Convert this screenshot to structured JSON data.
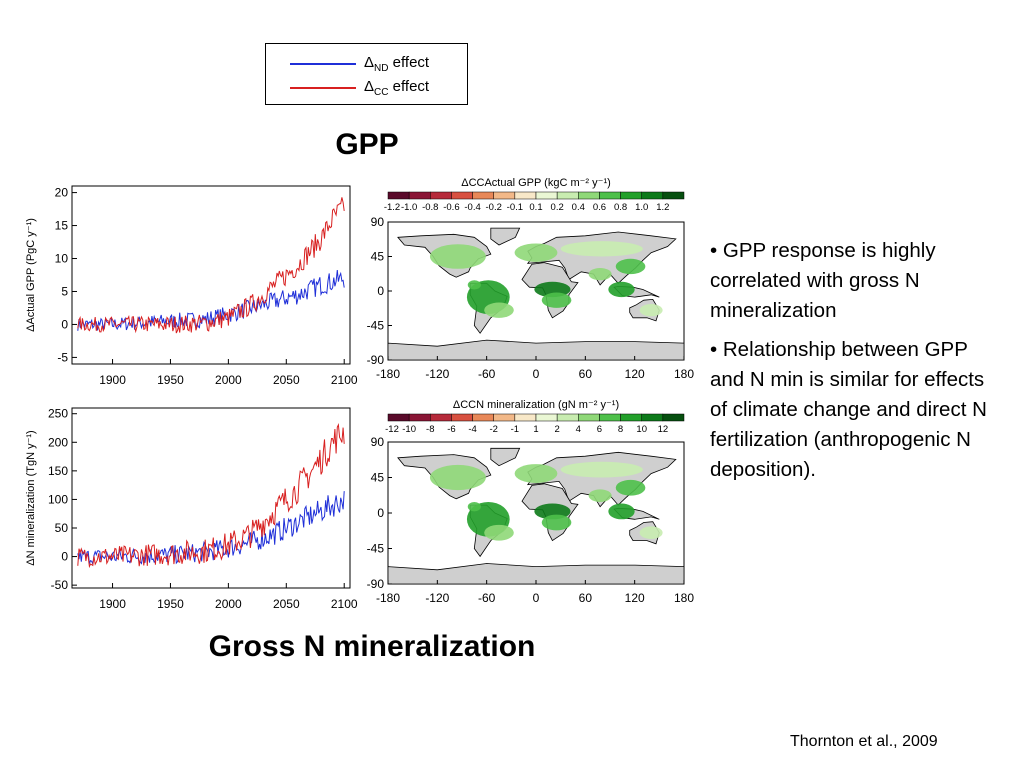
{
  "slide": {
    "title": "GPP",
    "subtitle": "Gross N mineralization",
    "bullets": [
      "• GPP response is highly correlated with gross N mineralization",
      "• Relationship between GPP and N min is similar for effects of climate change and direct N fertilization (anthropogenic N deposition)."
    ],
    "citation": "Thornton et al., 2009"
  },
  "legend": {
    "items": [
      {
        "symbol": "Δ",
        "sub": "ND",
        "label": "effect",
        "color": "#1f2fd8"
      },
      {
        "symbol": "Δ",
        "sub": "CC",
        "label": "effect",
        "color": "#d82020"
      }
    ]
  },
  "chart_data": [
    {
      "type": "line",
      "ylabel": "ΔActual GPP (PgC y⁻¹)",
      "xlim": [
        1865,
        2105
      ],
      "ylim": [
        -6,
        21
      ],
      "xticks": [
        1900,
        1950,
        2000,
        2050,
        2100
      ],
      "yticks": [
        -5,
        0,
        5,
        10,
        15,
        20
      ],
      "series": [
        {
          "name": "ΔND effect",
          "color": "#1f2fd8",
          "x": [
            1870,
            1900,
            1950,
            1980,
            2000,
            2020,
            2040,
            2060,
            2080,
            2090,
            2100
          ],
          "y": [
            0,
            0,
            0.5,
            0.8,
            1.5,
            2.5,
            3.5,
            4.5,
            6,
            6.5,
            7
          ]
        },
        {
          "name": "ΔCC effect",
          "color": "#d82020",
          "x": [
            1870,
            1900,
            1950,
            1980,
            2000,
            2020,
            2040,
            2060,
            2080,
            2090,
            2100
          ],
          "y": [
            0,
            0,
            0,
            0.2,
            1,
            3,
            6,
            9,
            13,
            16,
            18
          ]
        }
      ]
    },
    {
      "type": "line",
      "ylabel": "ΔN mineralization (TgN y⁻¹)",
      "xlim": [
        1865,
        2105
      ],
      "ylim": [
        -55,
        260
      ],
      "xticks": [
        1900,
        1950,
        2000,
        2050,
        2100
      ],
      "yticks": [
        -50,
        0,
        50,
        100,
        150,
        200,
        250
      ],
      "series": [
        {
          "name": "ΔND effect",
          "color": "#1f2fd8",
          "x": [
            1870,
            1900,
            1950,
            1980,
            2000,
            2020,
            2040,
            2060,
            2080,
            2090,
            2100
          ],
          "y": [
            0,
            0,
            3,
            8,
            15,
            25,
            40,
            60,
            80,
            90,
            100
          ]
        },
        {
          "name": "ΔCC effect",
          "color": "#d82020",
          "x": [
            1870,
            1900,
            1950,
            1980,
            2000,
            2020,
            2040,
            2060,
            2080,
            2090,
            2100
          ],
          "y": [
            0,
            0,
            5,
            10,
            20,
            40,
            80,
            120,
            170,
            200,
            220
          ]
        }
      ]
    },
    {
      "type": "heatmap",
      "title": "ΔCCActual GPP (kgC m⁻² y⁻¹)",
      "colorbar_labels": [
        "-1.2",
        "-1.0",
        "-0.8",
        "-0.6",
        "-0.4",
        "-0.2",
        "-0.1",
        "0.1",
        "0.2",
        "0.4",
        "0.6",
        "0.8",
        "1.0",
        "1.2"
      ],
      "colorbar_colors": [
        "#5a0a2a",
        "#8a1535",
        "#b62a3a",
        "#d85040",
        "#e88858",
        "#f2b888",
        "#f8e8c8",
        "#eaf7d4",
        "#c8ecb0",
        "#8fd878",
        "#4ec04a",
        "#22a02a",
        "#0d7a1a",
        "#064f0f"
      ],
      "xticks": [
        "-180",
        "-120",
        "-60",
        "0",
        "60",
        "120",
        "180"
      ],
      "yticks": [
        "90",
        "45",
        "0",
        "-45",
        "-90"
      ]
    },
    {
      "type": "heatmap",
      "title": "ΔCCN mineralization (gN m⁻² y⁻¹)",
      "colorbar_labels": [
        "-12",
        "-10",
        "-8",
        "-6",
        "-4",
        "-2",
        "-1",
        "1",
        "2",
        "4",
        "6",
        "8",
        "10",
        "12"
      ],
      "colorbar_colors": [
        "#5a0a2a",
        "#8a1535",
        "#b62a3a",
        "#d85040",
        "#e88858",
        "#f2b888",
        "#f8e8c8",
        "#eaf7d4",
        "#c8ecb0",
        "#8fd878",
        "#4ec04a",
        "#22a02a",
        "#0d7a1a",
        "#064f0f"
      ],
      "xticks": [
        "-180",
        "-120",
        "-60",
        "0",
        "60",
        "120",
        "180"
      ],
      "yticks": [
        "90",
        "45",
        "0",
        "-45",
        "-90"
      ]
    }
  ]
}
